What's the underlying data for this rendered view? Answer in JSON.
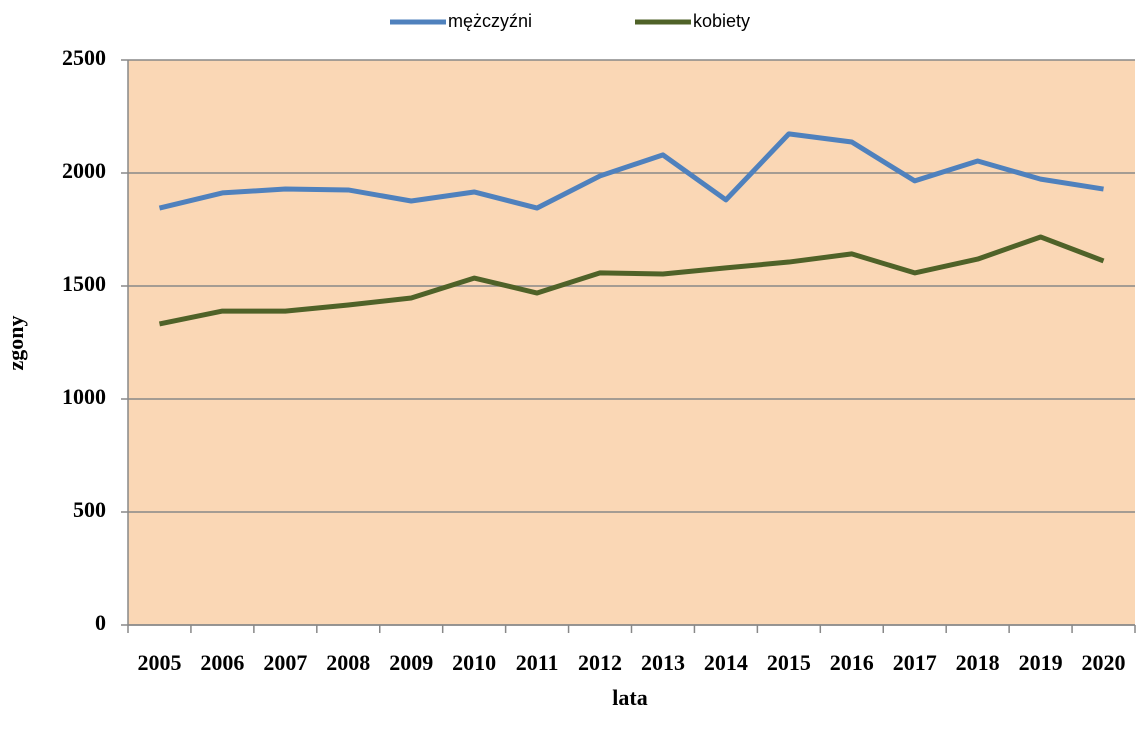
{
  "chart_data": {
    "type": "line",
    "x_label": "lata",
    "y_label": "zgony",
    "categories": [
      "2005",
      "2006",
      "2007",
      "2008",
      "2009",
      "2010",
      "2011",
      "2012",
      "2013",
      "2014",
      "2015",
      "2016",
      "2017",
      "2018",
      "2019",
      "2020"
    ],
    "series": [
      {
        "name": "mężczyźni",
        "color": "#4f81bd",
        "values": [
          1845,
          1912,
          1929,
          1925,
          1876,
          1916,
          1845,
          1987,
          2080,
          1881,
          2173,
          2137,
          1965,
          2053,
          1973,
          1929
        ]
      },
      {
        "name": "kobiety",
        "color": "#4f6228",
        "values": [
          1332,
          1389,
          1389,
          1416,
          1447,
          1535,
          1469,
          1558,
          1553,
          1580,
          1606,
          1642,
          1558,
          1619,
          1717,
          1611
        ]
      }
    ],
    "ylim": [
      0,
      2500
    ],
    "yticks": [
      0,
      500,
      1000,
      1500,
      2000,
      2500
    ],
    "grid": true,
    "legend": "top",
    "plot_background": "#fad7b5"
  }
}
